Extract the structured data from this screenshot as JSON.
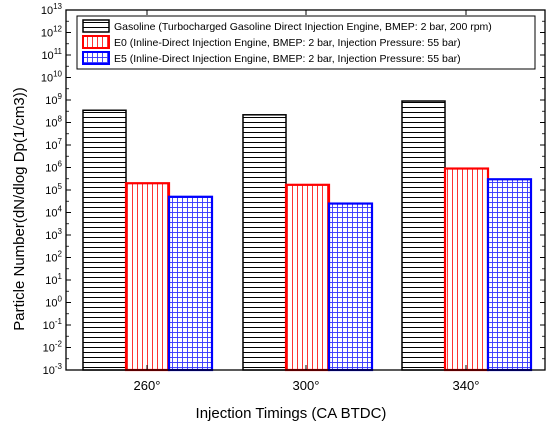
{
  "chart_data": {
    "type": "bar",
    "xlabel": "Injection Timings (CA BTDC)",
    "ylabel": "Particle Number(dN/dlog Dp(1/cm3))",
    "yscale": "log",
    "ylim_exponents": [
      -3,
      13
    ],
    "tick_base": "10",
    "categories": [
      "260°",
      "300°",
      "340°"
    ],
    "legend_position": "top-right",
    "grid": false,
    "series": [
      {
        "name": "Gasoline (Turbocharged Gasoline Direct Injection Engine, BMEP: 2 bar, 200 rpm)",
        "values": [
          350000000,
          220000000,
          900000000
        ],
        "color": "#000000",
        "pattern": "horizontal-lines"
      },
      {
        "name": "E0 (Inline-Direct Injection Engine, BMEP: 2 bar, Injection Pressure: 55 bar)",
        "values": [
          200000,
          170000,
          900000
        ],
        "color": "#ff0000",
        "pattern": "vertical-lines"
      },
      {
        "name": "E5 (Inline-Direct Injection Engine, BMEP: 2 bar, Injection Pressure: 55 bar)",
        "values": [
          50000,
          25000,
          300000
        ],
        "color": "#0000ff",
        "pattern": "crosshatch"
      }
    ]
  }
}
